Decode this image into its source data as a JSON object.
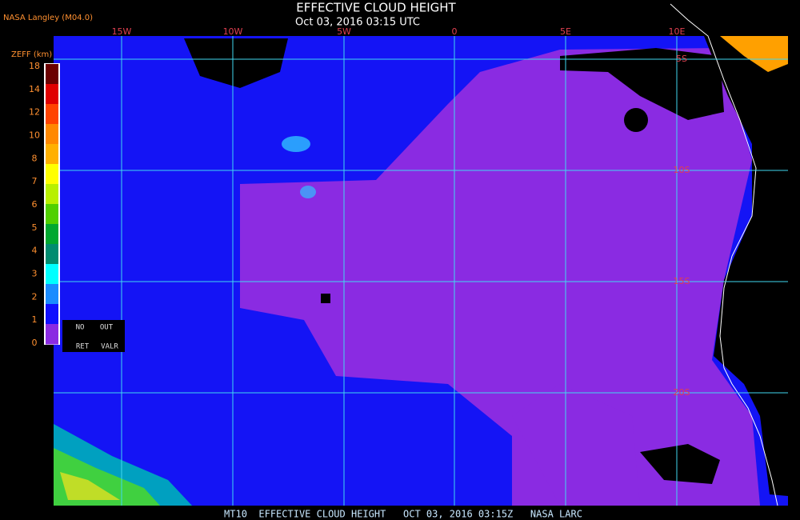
{
  "header": {
    "source": "NASA Langley (M04.0)",
    "title": "EFFECTIVE CLOUD HEIGHT",
    "subtitle": "Oct 03, 2016 03:15 UTC"
  },
  "longitudes": [
    "15W",
    "10W",
    "5W",
    "0",
    "5E",
    "10E"
  ],
  "latitudes": [
    "5S",
    "10S",
    "15S",
    "20S"
  ],
  "colorbar": {
    "label": "ZEFF (km)",
    "ticks": [
      18,
      14,
      12,
      10,
      8,
      7,
      6,
      5,
      4,
      3,
      2,
      1,
      0
    ],
    "colors": [
      "#6b0000",
      "#e00000",
      "#ff4400",
      "#ff8800",
      "#ffb000",
      "#ffff00",
      "#b8f000",
      "#50d000",
      "#00a830",
      "#008c70",
      "#00ffff",
      "#1a8cff",
      "#1010ff",
      "#8a2be2"
    ]
  },
  "legend": {
    "no_ret": [
      "NO",
      "RET"
    ],
    "out_valr": [
      "OUT",
      "VALR"
    ]
  },
  "footer": "MT10  EFFECTIVE CLOUD HEIGHT   OCT 03, 2016 03:15Z   NASA LARC"
}
